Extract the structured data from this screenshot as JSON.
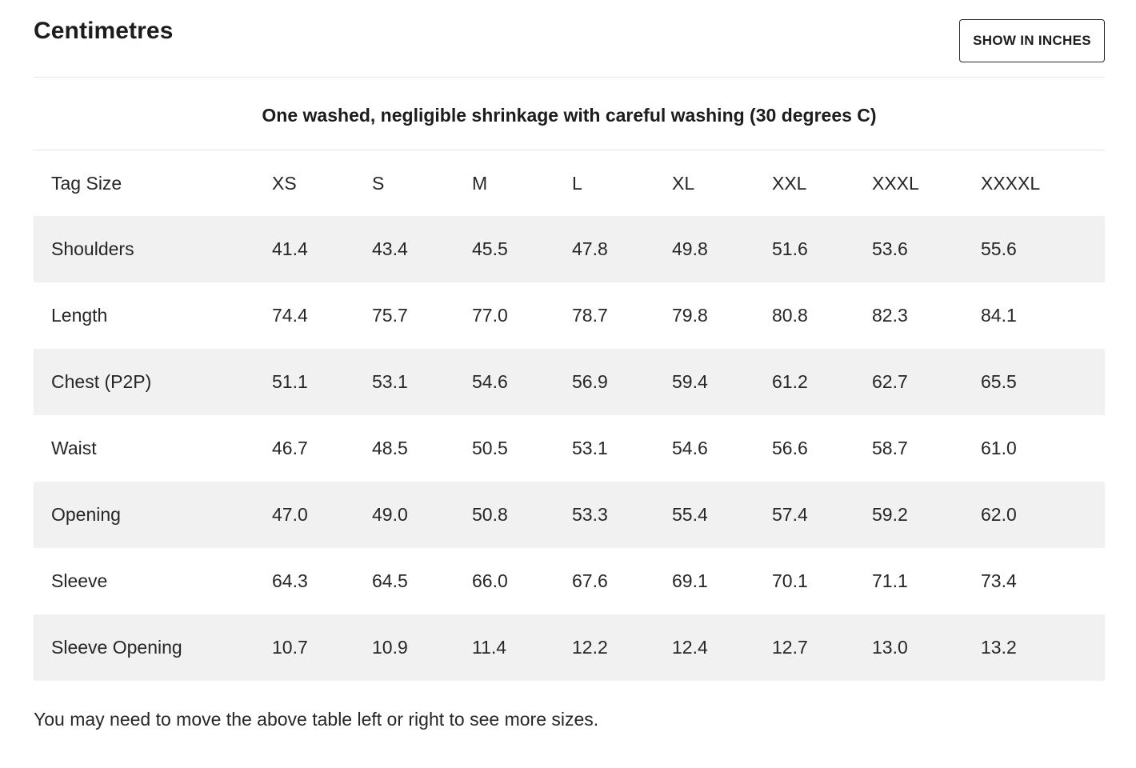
{
  "header": {
    "title": "Centimetres",
    "toggle_label": "SHOW IN INCHES"
  },
  "note": "One washed, negligible shrinkage with careful washing (30 degrees C)",
  "table": {
    "row_label_header": "Tag Size",
    "sizes": [
      "XS",
      "S",
      "M",
      "L",
      "XL",
      "XXL",
      "XXXL",
      "XXXXL"
    ],
    "rows": [
      {
        "label": "Shoulders",
        "values": [
          "41.4",
          "43.4",
          "45.5",
          "47.8",
          "49.8",
          "51.6",
          "53.6",
          "55.6"
        ]
      },
      {
        "label": "Length",
        "values": [
          "74.4",
          "75.7",
          "77.0",
          "78.7",
          "79.8",
          "80.8",
          "82.3",
          "84.1"
        ]
      },
      {
        "label": "Chest (P2P)",
        "values": [
          "51.1",
          "53.1",
          "54.6",
          "56.9",
          "59.4",
          "61.2",
          "62.7",
          "65.5"
        ]
      },
      {
        "label": "Waist",
        "values": [
          "46.7",
          "48.5",
          "50.5",
          "53.1",
          "54.6",
          "56.6",
          "58.7",
          "61.0"
        ]
      },
      {
        "label": "Opening",
        "values": [
          "47.0",
          "49.0",
          "50.8",
          "53.3",
          "55.4",
          "57.4",
          "59.2",
          "62.0"
        ]
      },
      {
        "label": "Sleeve",
        "values": [
          "64.3",
          "64.5",
          "66.0",
          "67.6",
          "69.1",
          "70.1",
          "71.1",
          "73.4"
        ]
      },
      {
        "label": "Sleeve Opening",
        "values": [
          "10.7",
          "10.9",
          "11.4",
          "12.2",
          "12.4",
          "12.7",
          "13.0",
          "13.2"
        ]
      }
    ]
  },
  "footer_note": "You may need to move the above table left or right to see more sizes.",
  "colors": {
    "stripe": "#f1f1f1",
    "text": "#262626",
    "divider": "#e6e6e6"
  }
}
